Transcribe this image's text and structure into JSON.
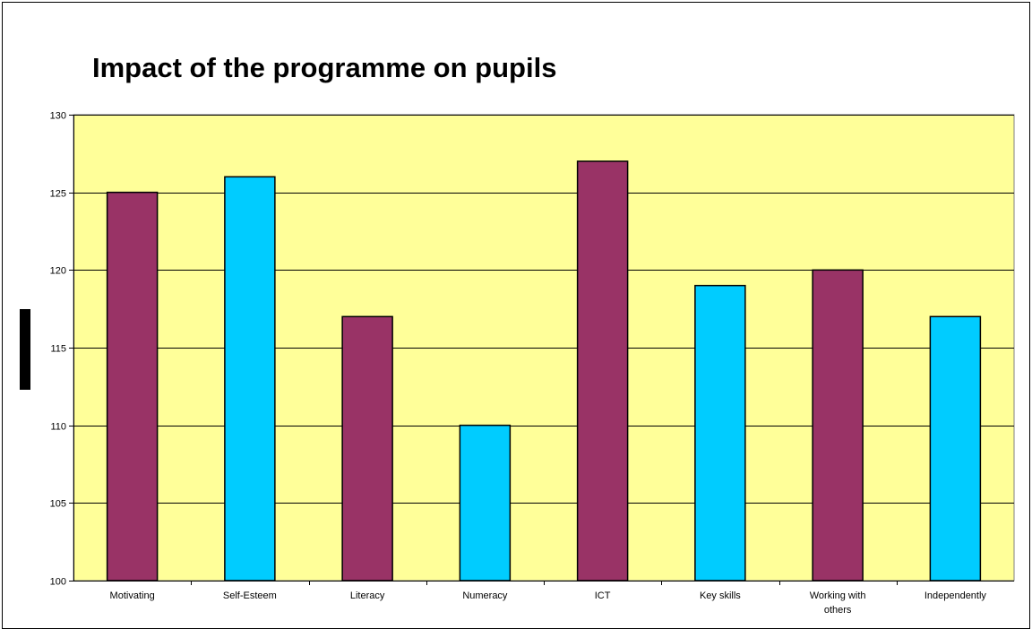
{
  "chart_data": {
    "type": "bar",
    "title": "Impact of the programme on pupils",
    "xlabel": "",
    "ylabel": "",
    "categories": [
      "Motivating",
      "Self-Esteem",
      "Literacy",
      "Numeracy",
      "ICT",
      "Key skills",
      "Working with others",
      "Independently"
    ],
    "values": [
      125,
      126,
      117,
      110,
      127,
      119,
      120,
      117
    ],
    "bar_colors": [
      "#993366",
      "#00ccff",
      "#993366",
      "#00ccff",
      "#993366",
      "#00ccff",
      "#993366",
      "#00ccff"
    ],
    "ylim": [
      100,
      130
    ],
    "yticks": [
      100,
      105,
      110,
      115,
      120,
      125,
      130
    ],
    "grid": true,
    "legend": "none",
    "plot_background": "#ffff99"
  }
}
